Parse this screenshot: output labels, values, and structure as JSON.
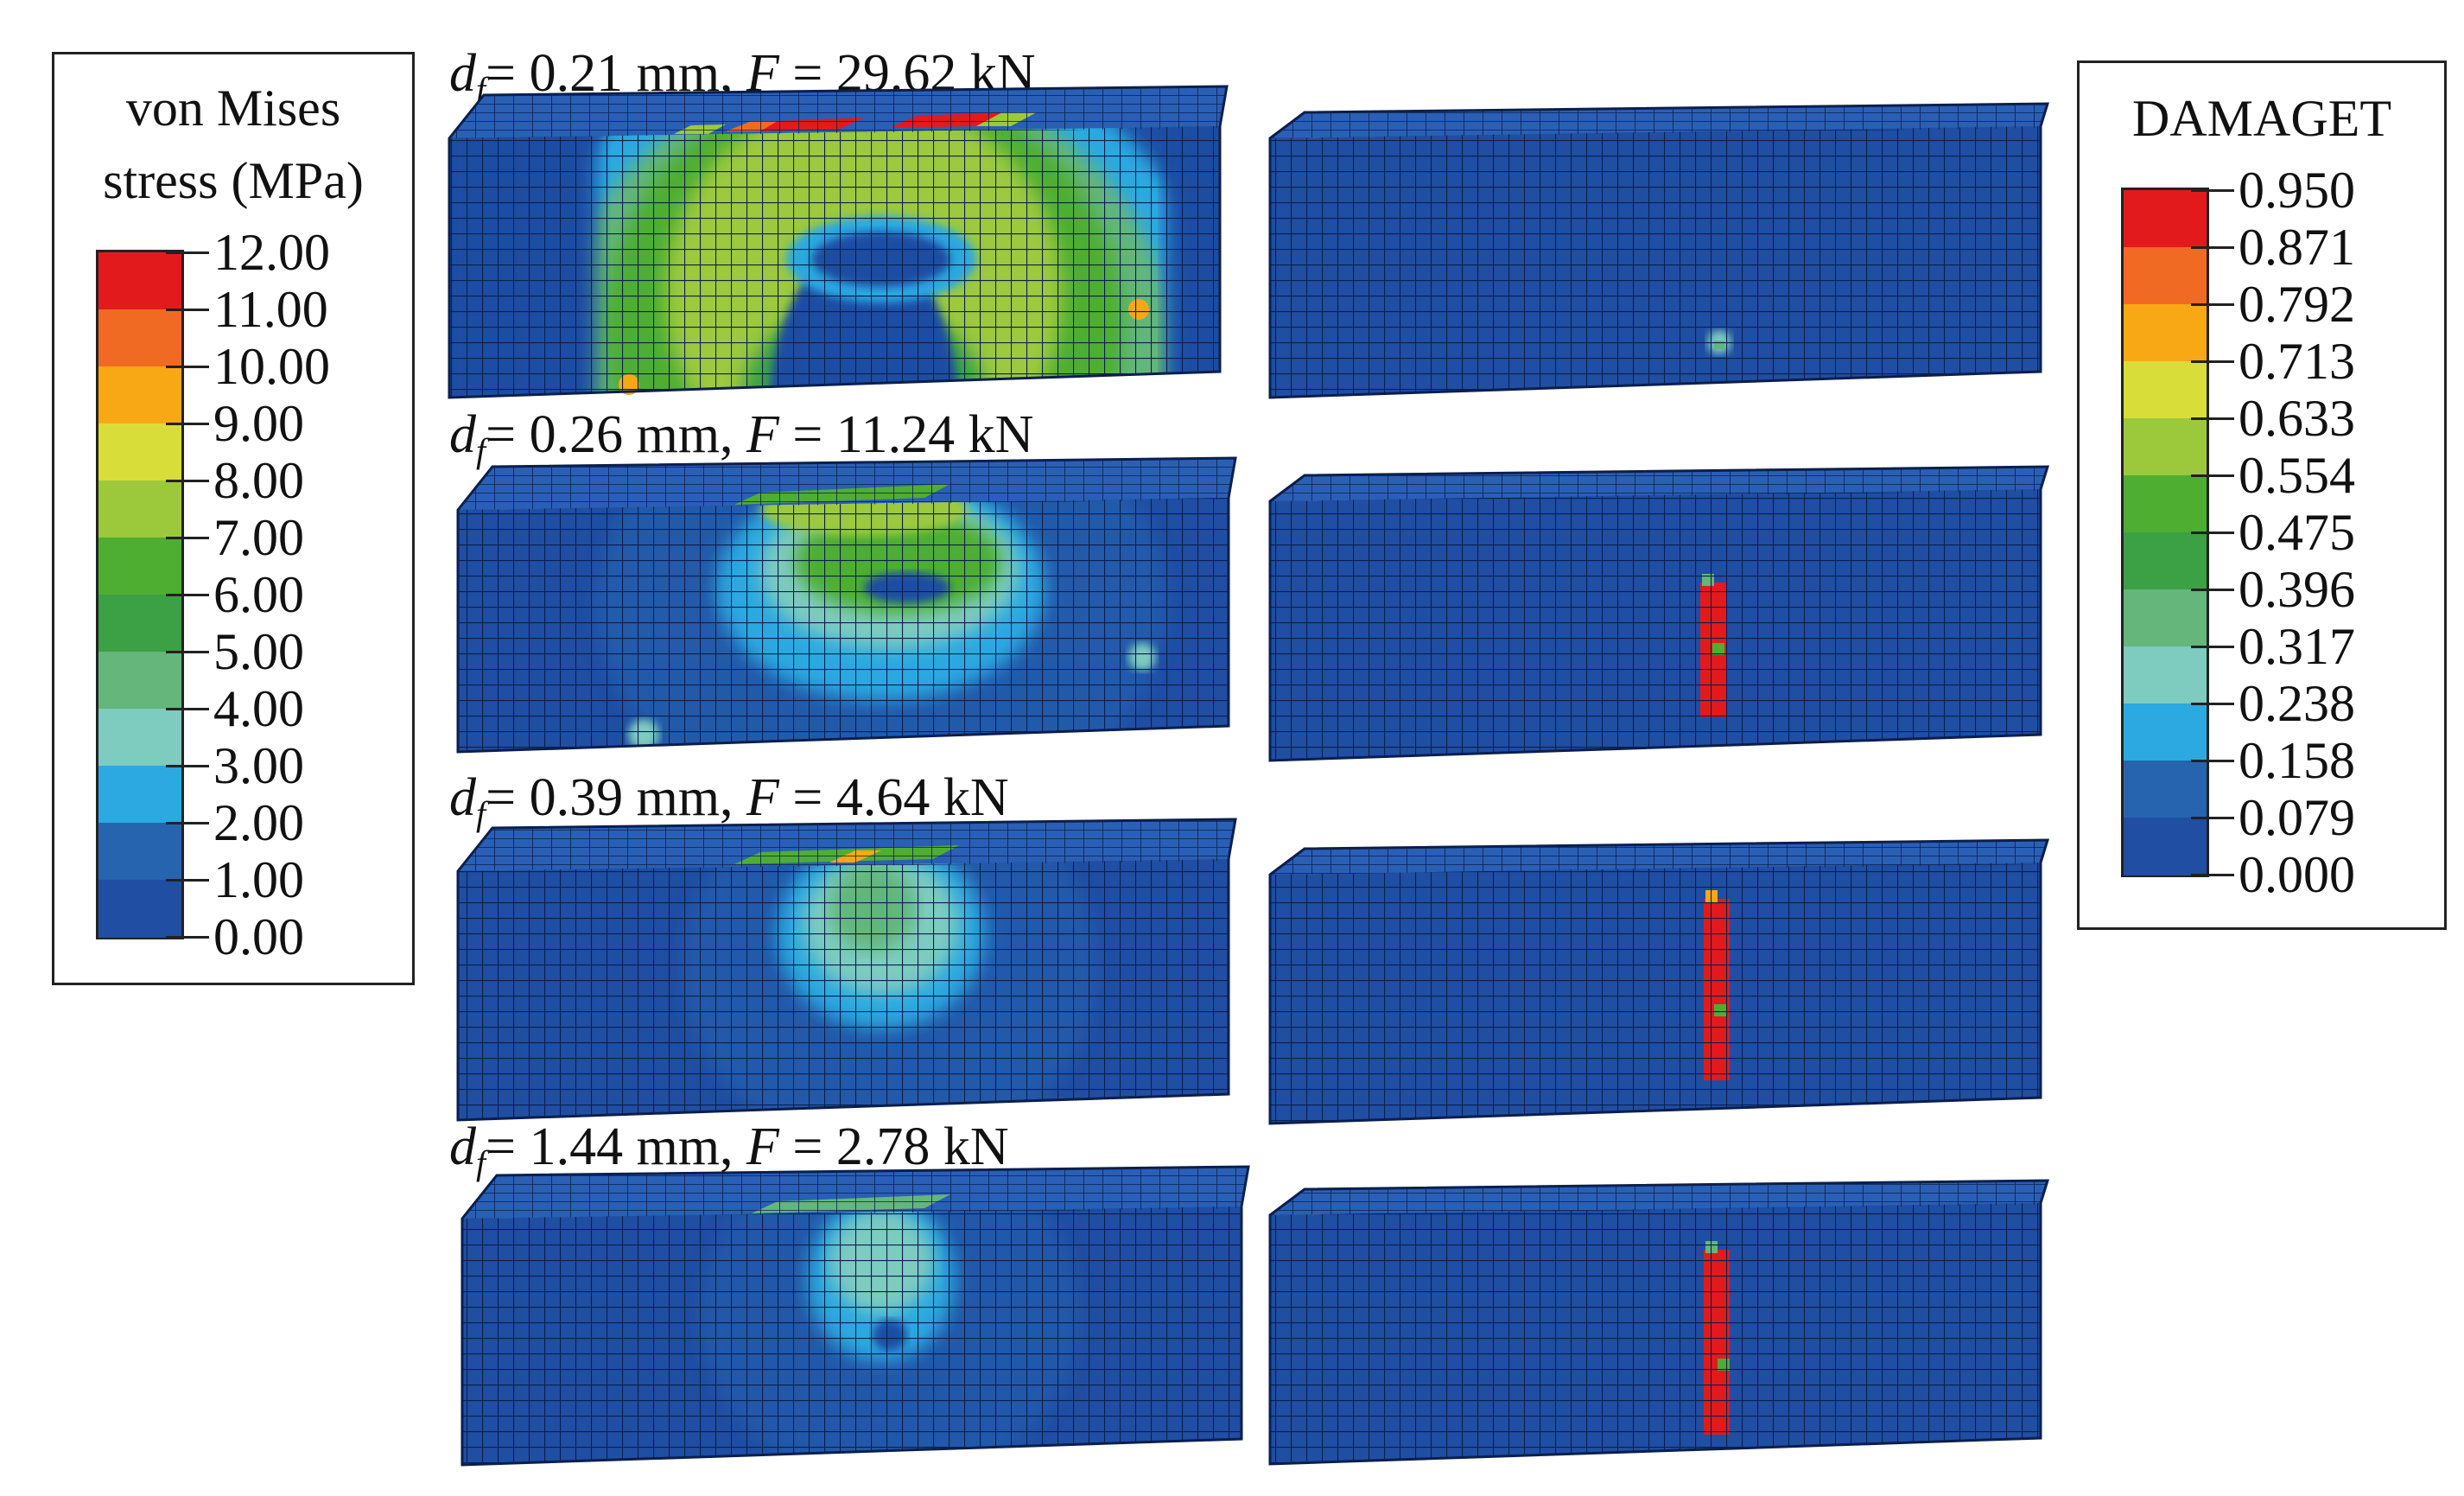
{
  "stress_legend": {
    "title_line1": "von Mises",
    "title_line2": "stress (MPa)",
    "levels": [
      "12.00",
      "11.00",
      "10.00",
      "9.00",
      "8.00",
      "7.00",
      "6.00",
      "5.00",
      "4.00",
      "3.00",
      "2.00",
      "1.00",
      "0.00"
    ],
    "colors": [
      "#e31a1c",
      "#f16a23",
      "#f8a815",
      "#d9dd3a",
      "#9cc93c",
      "#4eae31",
      "#3ba144",
      "#64b67a",
      "#7ecbc0",
      "#2ba9e0",
      "#2664b0",
      "#1f4ea3"
    ]
  },
  "damage_legend": {
    "title": "DAMAGET",
    "levels": [
      "0.950",
      "0.871",
      "0.792",
      "0.713",
      "0.633",
      "0.554",
      "0.475",
      "0.396",
      "0.317",
      "0.238",
      "0.158",
      "0.079",
      "0.000"
    ],
    "colors": [
      "#e31a1c",
      "#f16a23",
      "#f8a815",
      "#d9dd3a",
      "#9cc93c",
      "#4eae31",
      "#3ba144",
      "#64b67a",
      "#7ecbc0",
      "#2ba9e0",
      "#2664b0",
      "#1f4ea3"
    ]
  },
  "mesh_colors": {
    "base": "#1f4ea3",
    "grid": "#0b1f4d",
    "top": "#2a5fb6",
    "side": "#173f86"
  },
  "rows": [
    {
      "d_label": "d",
      "d_sub": "f",
      "d_value": "= 0.21 mm, ",
      "f_label": "F",
      "f_value": " = 29.62 kN"
    },
    {
      "d_label": "d",
      "d_sub": "f",
      "d_value": "= 0.26 mm, ",
      "f_label": "F",
      "f_value": " = 11.24 kN"
    },
    {
      "d_label": "d",
      "d_sub": "f",
      "d_value": "= 0.39 mm, ",
      "f_label": "F",
      "f_value": " = 4.64 kN"
    },
    {
      "d_label": "d",
      "d_sub": "f",
      "d_value": "= 1.44 mm, ",
      "f_label": "F",
      "f_value": " = 2.78 kN"
    }
  ]
}
